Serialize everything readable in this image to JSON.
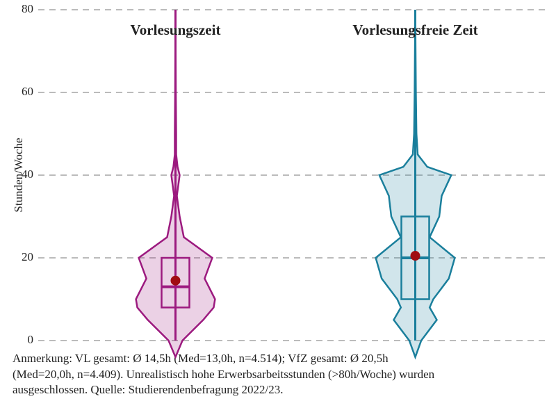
{
  "chart_data": {
    "type": "violin",
    "y_label": "Stunden/Woche",
    "categories": [
      "Vorlesungszeit",
      "Vorlesungsfreie Zeit"
    ],
    "ylim": [
      0,
      80
    ],
    "yticks": [
      0,
      20,
      40,
      60,
      80
    ],
    "grid": true,
    "violin_y": [
      -4,
      0,
      5,
      8,
      10,
      15,
      20,
      25,
      30,
      35,
      40,
      42,
      45,
      50,
      60,
      80
    ],
    "series": [
      {
        "name": "Vorlesungszeit",
        "color": "#9c1a7f",
        "density": [
          0,
          10,
          40,
          55,
          57,
          42,
          53,
          12,
          6,
          2,
          6,
          3,
          1,
          1,
          0.5,
          0
        ],
        "min": 0,
        "max": 80,
        "q1": 8,
        "median": 13,
        "q3": 20,
        "mean": 14.5
      },
      {
        "name": "Vorlesungsfreie Zeit",
        "color": "#1a7f9c",
        "density": [
          0,
          5,
          18,
          12,
          15,
          28,
          33,
          12,
          20,
          22,
          30,
          10,
          2,
          1,
          0.5,
          0
        ],
        "min": 0,
        "max": 80,
        "q1": 10,
        "median": 20,
        "q3": 30,
        "mean": 20.5
      }
    ],
    "mean_color": "#a00d12",
    "note": [
      "Anmerkung: VL gesamt: Ø 14,5h (Med=13,0h, n=4.514); VfZ gesamt: Ø 20,5h",
      "(Med=20,0h, n=4.409). Unrealistisch hohe Erwerbsarbeitsstunden (>80h/Woche) wurden",
      "ausgeschlossen. Quelle: Studierendenbefragung 2022/23."
    ]
  }
}
